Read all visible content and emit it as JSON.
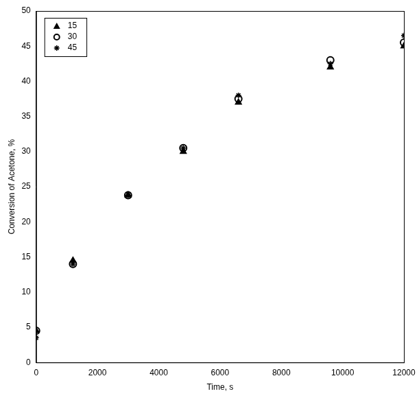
{
  "chart_data": {
    "type": "scatter",
    "x_label": "Time, s",
    "y_label": "Conversion of Acetone, %",
    "series": [
      {
        "name": "15",
        "color": "#000000",
        "marker": "triangle",
        "x": [
          0,
          1200,
          3000,
          4800,
          6600,
          9600,
          12000
        ],
        "values": [
          4.5,
          14.5,
          23.8,
          30,
          37,
          42,
          45
        ]
      },
      {
        "name": "30",
        "color": "#000000",
        "marker": "circle",
        "x": [
          0,
          1200,
          3000,
          4800,
          6600,
          9600,
          12000
        ],
        "values": [
          4.5,
          14,
          23.8,
          30.5,
          37.5,
          43,
          45.5
        ]
      },
      {
        "name": "45",
        "color": "#000000",
        "marker": "star",
        "x": [
          0,
          1200,
          3000,
          4800,
          6600,
          9600,
          12000
        ],
        "values": [
          3.5,
          14,
          23.8,
          30.5,
          38,
          42.5,
          46.5
        ]
      }
    ],
    "xlim": [
      0,
      12000
    ],
    "xticks": [
      0,
      2000,
      4000,
      6000,
      8000,
      10000,
      12000
    ],
    "ylim": [
      0,
      50
    ],
    "yticks": [
      0,
      5,
      10,
      15,
      20,
      25,
      30,
      35,
      40,
      45,
      50
    ],
    "grid": false,
    "legend": "upper left"
  }
}
